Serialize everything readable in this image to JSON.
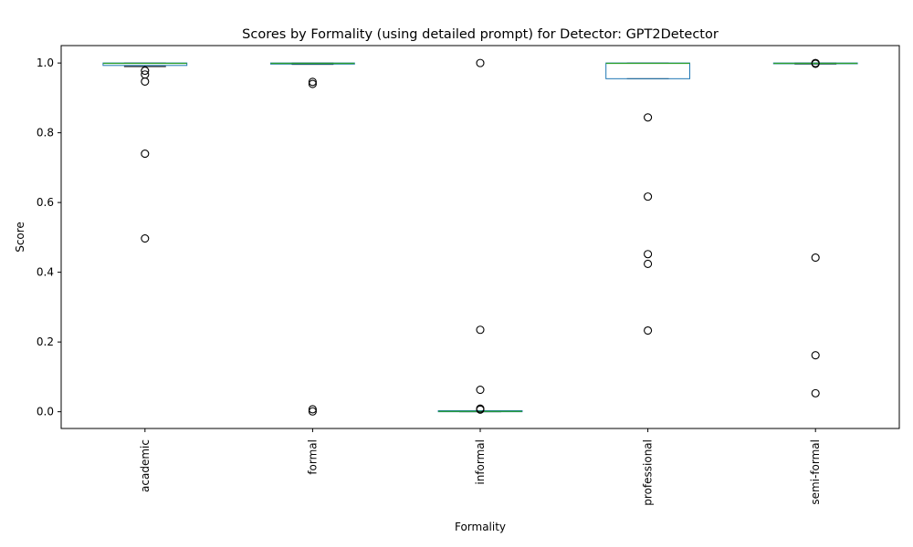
{
  "chart_data": {
    "type": "box",
    "title": "Scores by Formality (using detailed prompt) for Detector: GPT2Detector",
    "xlabel": "Formality",
    "ylabel": "Score",
    "ylim": [
      -0.048,
      1.05
    ],
    "yticks": [
      "0.0",
      "0.2",
      "0.4",
      "0.6",
      "0.8",
      "1.0"
    ],
    "categories": [
      "academic",
      "formal",
      "informal",
      "professional",
      "semi-formal"
    ],
    "grid": false,
    "colors": {
      "box": "#1f77b4",
      "median": "#2ca02c",
      "whisker": "#000000",
      "flier": "#000000"
    },
    "boxes": [
      {
        "category": "academic",
        "q1": 0.993,
        "median": 0.999,
        "q3": 1.0,
        "whisker_low": 0.99,
        "whisker_high": 1.0,
        "fliers": [
          0.978,
          0.967,
          0.947,
          0.74,
          0.497
        ]
      },
      {
        "category": "formal",
        "q1": 0.997,
        "median": 0.999,
        "q3": 1.0,
        "whisker_low": 0.996,
        "whisker_high": 1.0,
        "fliers": [
          0.946,
          0.94,
          0.007,
          0.001
        ]
      },
      {
        "category": "informal",
        "q1": 0.0,
        "median": 0.001,
        "q3": 0.003,
        "whisker_low": 0.0,
        "whisker_high": 0.003,
        "fliers": [
          1.0,
          0.235,
          0.063,
          0.009,
          0.006
        ]
      },
      {
        "category": "professional",
        "q1": 0.955,
        "median": 0.999,
        "q3": 1.0,
        "whisker_low": 0.955,
        "whisker_high": 1.0,
        "fliers": [
          0.844,
          0.617,
          0.452,
          0.424,
          0.233
        ]
      },
      {
        "category": "semi-formal",
        "q1": 0.998,
        "median": 0.999,
        "q3": 1.0,
        "whisker_low": 0.997,
        "whisker_high": 1.0,
        "fliers": [
          1.0,
          0.998,
          0.442,
          0.162,
          0.053
        ]
      }
    ]
  }
}
